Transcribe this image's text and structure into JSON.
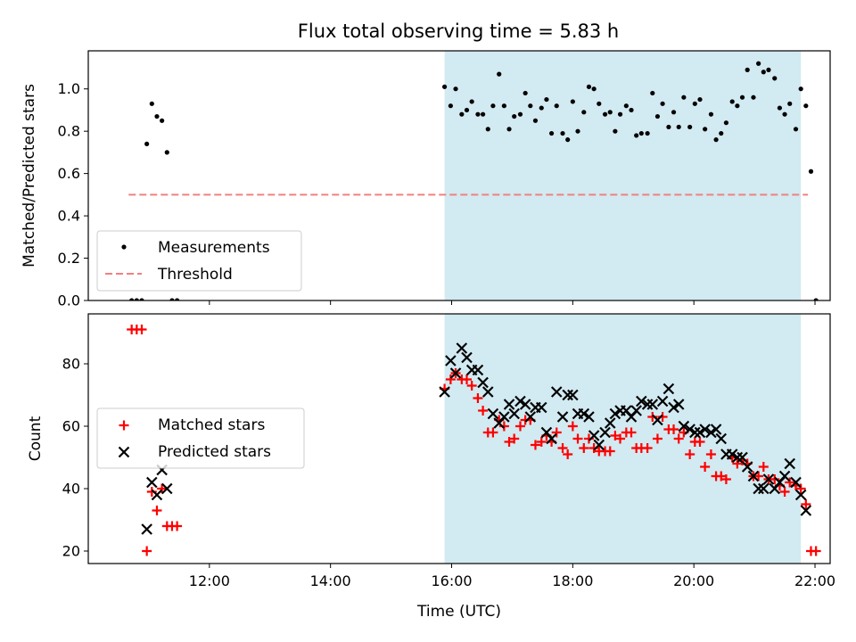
{
  "title": "Flux total observing time = 5.83 h",
  "colors": {
    "measurement": "#000000",
    "threshold": "#f08080",
    "matched": "#ff0000",
    "predicted": "#000000",
    "shade": "#add8e6"
  },
  "chart_data": [
    {
      "type": "scatter",
      "ylabel": "Matched/Predicted stars",
      "xlim": [
        "10:00",
        "22:15"
      ],
      "ylim": [
        0,
        1.18
      ],
      "yticks": [
        "0.0",
        "0.2",
        "0.4",
        "0.6",
        "0.8",
        "1.0"
      ],
      "legend": {
        "position": "lower-left",
        "entries": [
          "Measurements",
          "Threshold"
        ]
      },
      "shaded_region": [
        "15:53",
        "21:46"
      ],
      "threshold": {
        "value": 0.5,
        "x": [
          "10:40",
          "21:53"
        ]
      },
      "series": [
        {
          "name": "Measurements",
          "points": [
            [
              "10:43",
              0
            ],
            [
              "10:48",
              0
            ],
            [
              "10:53",
              0
            ],
            [
              "10:58",
              0.74
            ],
            [
              "11:03",
              0.93
            ],
            [
              "11:08",
              0.87
            ],
            [
              "11:13",
              0.85
            ],
            [
              "11:18",
              0.7
            ],
            [
              "11:23",
              0
            ],
            [
              "11:28",
              0
            ],
            [
              "15:53",
              1.01
            ],
            [
              "15:59",
              0.92
            ],
            [
              "16:04",
              1.0
            ],
            [
              "16:10",
              0.88
            ],
            [
              "16:15",
              0.9
            ],
            [
              "16:20",
              0.94
            ],
            [
              "16:26",
              0.88
            ],
            [
              "16:31",
              0.88
            ],
            [
              "16:36",
              0.81
            ],
            [
              "16:41",
              0.92
            ],
            [
              "16:47",
              1.07
            ],
            [
              "16:52",
              0.92
            ],
            [
              "16:57",
              0.81
            ],
            [
              "17:02",
              0.87
            ],
            [
              "17:08",
              0.88
            ],
            [
              "17:13",
              0.98
            ],
            [
              "17:18",
              0.92
            ],
            [
              "17:23",
              0.85
            ],
            [
              "17:29",
              0.91
            ],
            [
              "17:34",
              0.95
            ],
            [
              "17:39",
              0.79
            ],
            [
              "17:44",
              0.92
            ],
            [
              "17:50",
              0.79
            ],
            [
              "17:55",
              0.76
            ],
            [
              "18:00",
              0.94
            ],
            [
              "18:05",
              0.8
            ],
            [
              "18:11",
              0.89
            ],
            [
              "18:16",
              1.01
            ],
            [
              "18:21",
              1.0
            ],
            [
              "18:26",
              0.93
            ],
            [
              "18:32",
              0.88
            ],
            [
              "18:37",
              0.89
            ],
            [
              "18:42",
              0.8
            ],
            [
              "18:47",
              0.88
            ],
            [
              "18:53",
              0.92
            ],
            [
              "18:58",
              0.9
            ],
            [
              "19:03",
              0.78
            ],
            [
              "19:08",
              0.79
            ],
            [
              "19:14",
              0.79
            ],
            [
              "19:19",
              0.98
            ],
            [
              "19:24",
              0.87
            ],
            [
              "19:29",
              0.93
            ],
            [
              "19:35",
              0.82
            ],
            [
              "19:40",
              0.89
            ],
            [
              "19:45",
              0.82
            ],
            [
              "19:50",
              0.96
            ],
            [
              "19:56",
              0.82
            ],
            [
              "20:01",
              0.93
            ],
            [
              "20:06",
              0.95
            ],
            [
              "20:11",
              0.81
            ],
            [
              "20:17",
              0.88
            ],
            [
              "20:22",
              0.76
            ],
            [
              "20:27",
              0.79
            ],
            [
              "20:32",
              0.84
            ],
            [
              "20:38",
              0.94
            ],
            [
              "20:43",
              0.92
            ],
            [
              "20:48",
              0.96
            ],
            [
              "20:53",
              1.09
            ],
            [
              "20:59",
              0.96
            ],
            [
              "21:04",
              1.12
            ],
            [
              "21:09",
              1.08
            ],
            [
              "21:14",
              1.09
            ],
            [
              "21:20",
              1.05
            ],
            [
              "21:25",
              0.91
            ],
            [
              "21:30",
              0.88
            ],
            [
              "21:35",
              0.93
            ],
            [
              "21:41",
              0.81
            ],
            [
              "21:46",
              1.0
            ],
            [
              "21:51",
              0.92
            ],
            [
              "21:56",
              0.61
            ],
            [
              "22:01",
              0
            ]
          ]
        }
      ]
    },
    {
      "type": "scatter",
      "xlabel": "Time (UTC)",
      "ylabel": "Count",
      "xlim": [
        "10:00",
        "22:15"
      ],
      "ylim": [
        16,
        96
      ],
      "yticks": [
        "20",
        "40",
        "60",
        "80"
      ],
      "xticks": [
        "12:00",
        "14:00",
        "16:00",
        "18:00",
        "20:00",
        "22:00"
      ],
      "legend": {
        "position": "center-left",
        "entries": [
          "Matched stars",
          "Predicted stars"
        ]
      },
      "shaded_region": [
        "15:53",
        "21:46"
      ],
      "series": [
        {
          "name": "Matched stars",
          "marker": "+",
          "points": [
            [
              "10:43",
              91
            ],
            [
              "10:48",
              91
            ],
            [
              "10:53",
              91
            ],
            [
              "10:58",
              20
            ],
            [
              "11:03",
              39
            ],
            [
              "11:08",
              33
            ],
            [
              "11:13",
              40
            ],
            [
              "11:18",
              28
            ],
            [
              "11:23",
              28
            ],
            [
              "11:28",
              28
            ],
            [
              "15:53",
              72
            ],
            [
              "15:59",
              75
            ],
            [
              "16:04",
              77
            ],
            [
              "16:10",
              75
            ],
            [
              "16:15",
              75
            ],
            [
              "16:20",
              73
            ],
            [
              "16:26",
              69
            ],
            [
              "16:31",
              65
            ],
            [
              "16:36",
              58
            ],
            [
              "16:41",
              58
            ],
            [
              "16:47",
              62
            ],
            [
              "16:52",
              60
            ],
            [
              "16:57",
              55
            ],
            [
              "17:02",
              56
            ],
            [
              "17:08",
              60
            ],
            [
              "17:13",
              62
            ],
            [
              "17:18",
              62
            ],
            [
              "17:23",
              54
            ],
            [
              "17:29",
              55
            ],
            [
              "17:34",
              57
            ],
            [
              "17:39",
              55
            ],
            [
              "17:44",
              58
            ],
            [
              "17:50",
              53
            ],
            [
              "17:55",
              51
            ],
            [
              "18:00",
              60
            ],
            [
              "18:05",
              56
            ],
            [
              "18:11",
              53
            ],
            [
              "18:16",
              56
            ],
            [
              "18:21",
              53
            ],
            [
              "18:26",
              52
            ],
            [
              "18:32",
              52
            ],
            [
              "18:37",
              52
            ],
            [
              "18:42",
              57
            ],
            [
              "18:47",
              56
            ],
            [
              "18:53",
              58
            ],
            [
              "18:58",
              58
            ],
            [
              "19:03",
              53
            ],
            [
              "19:08",
              53
            ],
            [
              "19:14",
              53
            ],
            [
              "19:19",
              63
            ],
            [
              "19:24",
              56
            ],
            [
              "19:29",
              63
            ],
            [
              "19:35",
              59
            ],
            [
              "19:40",
              59
            ],
            [
              "19:45",
              56
            ],
            [
              "19:50",
              58
            ],
            [
              "19:56",
              51
            ],
            [
              "20:01",
              55
            ],
            [
              "20:06",
              55
            ],
            [
              "20:11",
              47
            ],
            [
              "20:17",
              51
            ],
            [
              "20:22",
              44
            ],
            [
              "20:27",
              44
            ],
            [
              "20:32",
              43
            ],
            [
              "20:38",
              50
            ],
            [
              "20:43",
              48
            ],
            [
              "20:48",
              49
            ],
            [
              "20:53",
              48
            ],
            [
              "20:59",
              44
            ],
            [
              "21:04",
              44
            ],
            [
              "21:09",
              47
            ],
            [
              "21:14",
              43
            ],
            [
              "21:20",
              43
            ],
            [
              "21:25",
              41
            ],
            [
              "21:30",
              39
            ],
            [
              "21:35",
              42
            ],
            [
              "21:41",
              41
            ],
            [
              "21:46",
              40
            ],
            [
              "21:51",
              35
            ],
            [
              "21:56",
              20
            ],
            [
              "22:01",
              20
            ]
          ]
        },
        {
          "name": "Predicted stars",
          "marker": "x",
          "points": [
            [
              "10:58",
              27
            ],
            [
              "11:03",
              42
            ],
            [
              "11:08",
              38
            ],
            [
              "11:13",
              46
            ],
            [
              "11:18",
              40
            ],
            [
              "15:53",
              71
            ],
            [
              "15:59",
              81
            ],
            [
              "16:04",
              77
            ],
            [
              "16:10",
              85
            ],
            [
              "16:15",
              82
            ],
            [
              "16:20",
              78
            ],
            [
              "16:26",
              78
            ],
            [
              "16:31",
              74
            ],
            [
              "16:36",
              71
            ],
            [
              "16:41",
              64
            ],
            [
              "16:47",
              61
            ],
            [
              "16:52",
              63
            ],
            [
              "16:57",
              67
            ],
            [
              "17:02",
              64
            ],
            [
              "17:08",
              68
            ],
            [
              "17:13",
              67
            ],
            [
              "17:18",
              63
            ],
            [
              "17:23",
              66
            ],
            [
              "17:29",
              66
            ],
            [
              "17:34",
              58
            ],
            [
              "17:39",
              56
            ],
            [
              "17:44",
              71
            ],
            [
              "17:50",
              63
            ],
            [
              "17:55",
              70
            ],
            [
              "18:00",
              70
            ],
            [
              "18:05",
              64
            ],
            [
              "18:11",
              64
            ],
            [
              "18:16",
              63
            ],
            [
              "18:21",
              57
            ],
            [
              "18:26",
              54
            ],
            [
              "18:32",
              58
            ],
            [
              "18:37",
              61
            ],
            [
              "18:42",
              64
            ],
            [
              "18:47",
              65
            ],
            [
              "18:53",
              65
            ],
            [
              "18:58",
              63
            ],
            [
              "19:03",
              65
            ],
            [
              "19:08",
              68
            ],
            [
              "19:14",
              67
            ],
            [
              "19:19",
              67
            ],
            [
              "19:24",
              62
            ],
            [
              "19:29",
              68
            ],
            [
              "19:35",
              72
            ],
            [
              "19:40",
              66
            ],
            [
              "19:45",
              67
            ],
            [
              "19:50",
              60
            ],
            [
              "19:56",
              59
            ],
            [
              "20:01",
              58
            ],
            [
              "20:06",
              58
            ],
            [
              "20:11",
              59
            ],
            [
              "20:17",
              58
            ],
            [
              "20:22",
              59
            ],
            [
              "20:27",
              56
            ],
            [
              "20:32",
              51
            ],
            [
              "20:38",
              51
            ],
            [
              "20:43",
              50
            ],
            [
              "20:48",
              50
            ],
            [
              "20:53",
              47
            ],
            [
              "20:59",
              44
            ],
            [
              "21:04",
              40
            ],
            [
              "21:09",
              40
            ],
            [
              "21:14",
              43
            ],
            [
              "21:20",
              40
            ],
            [
              "21:25",
              42
            ],
            [
              "21:30",
              44
            ],
            [
              "21:35",
              48
            ],
            [
              "21:41",
              42
            ],
            [
              "21:46",
              38
            ],
            [
              "21:51",
              33
            ]
          ]
        }
      ]
    }
  ]
}
